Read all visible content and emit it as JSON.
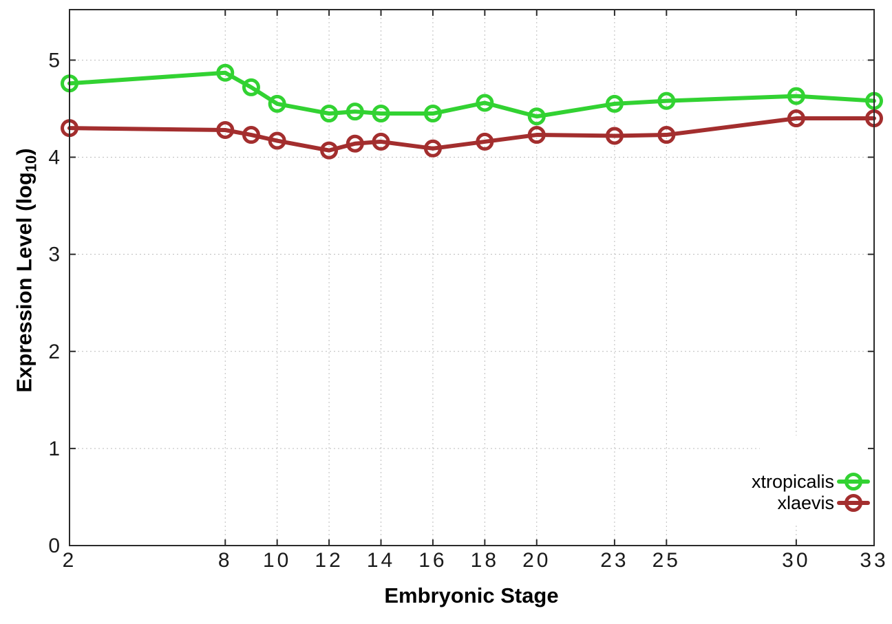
{
  "chart_data": {
    "type": "line",
    "title": "",
    "xlabel": "Embryonic Stage",
    "ylabel": "Expression Level (log10)",
    "ylabel_parts": {
      "prefix": "Expression Level (log",
      "subscript": "10",
      "suffix": ")"
    },
    "x": [
      2,
      8,
      9,
      10,
      12,
      13,
      14,
      16,
      18,
      20,
      23,
      25,
      30,
      33
    ],
    "xticks": [
      2,
      8,
      10,
      12,
      14,
      16,
      18,
      20,
      23,
      25,
      30,
      33
    ],
    "yticks": [
      0,
      1,
      2,
      3,
      4,
      5
    ],
    "xlim": [
      2,
      33
    ],
    "ylim": [
      0,
      5.52
    ],
    "grid": true,
    "legend_position": "inside-right-bottom",
    "legend_opaque": true,
    "series": [
      {
        "name": "xtropicalis",
        "color": "#32d232",
        "values": [
          4.76,
          4.87,
          4.72,
          4.55,
          4.45,
          4.47,
          4.45,
          4.45,
          4.56,
          4.42,
          4.55,
          4.58,
          4.63,
          4.58
        ]
      },
      {
        "name": "xlaevis",
        "color": "#a32e2e",
        "values": [
          4.3,
          4.28,
          4.23,
          4.17,
          4.07,
          4.14,
          4.16,
          4.09,
          4.16,
          4.23,
          4.22,
          4.23,
          4.4,
          4.4
        ]
      }
    ],
    "style": {
      "border_color": "#2a2a2a",
      "grid_color": "#bbbbbb",
      "tick_label_color": "#1a1a1a",
      "background": "#ffffff"
    }
  }
}
